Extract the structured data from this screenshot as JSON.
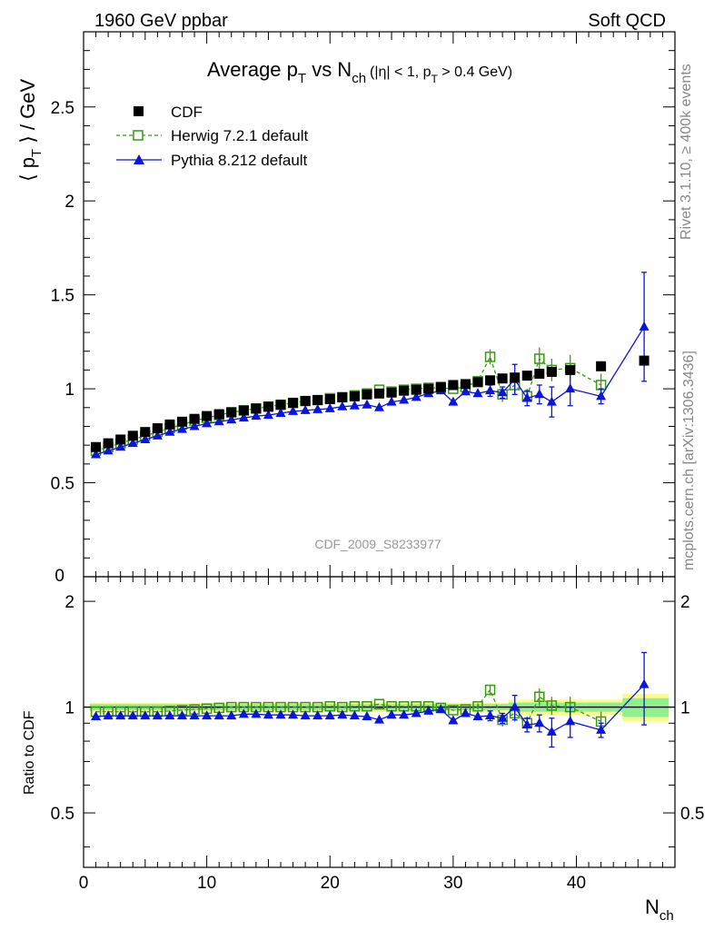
{
  "header": {
    "left": "1960 GeV ppbar",
    "right": "Soft QCD"
  },
  "side": {
    "rivet": "Rivet 3.1.10, ≥ 400k events",
    "mcplots": "mcplots.cern.ch [arXiv:1306.3436]"
  },
  "watermark": "CDF_2009_S8233977",
  "title": {
    "main": "Average p",
    "sub_t": "T",
    "vs": " vs N",
    "sub_ch": "ch",
    "cut": "(|η| < 1, p",
    "cut_sub": "T",
    "cut_end": " > 0.4 GeV)"
  },
  "colors": {
    "cdf": "#000000",
    "herwig": "#3a9a10",
    "pythia": "#0a14e0",
    "band_inner": "#8ef08e",
    "band_outer": "#fbfb8a"
  },
  "chart_data": [
    {
      "type": "scatter",
      "panel": "main",
      "ylabel": "⟨ p_T ⟩ / GeV",
      "ylabel_parts": {
        "pre": "⟨ p",
        "sub": "T",
        "post": " ⟩ / GeV"
      },
      "xlim": [
        0,
        48
      ],
      "ylim": [
        0,
        2.9
      ],
      "yticks": [
        0.5,
        1,
        1.5,
        2,
        2.5
      ],
      "ytick_labels": [
        "0.5",
        "1",
        "1.5",
        "2",
        "2.5"
      ],
      "bottom_label": "0",
      "legend": [
        "CDF",
        "Herwig 7.2.1 default",
        "Pythia 8.212 default"
      ],
      "series": [
        {
          "name": "CDF",
          "x": [
            1,
            2,
            3,
            4,
            5,
            6,
            7,
            8,
            9,
            10,
            11,
            12,
            13,
            14,
            15,
            16,
            17,
            18,
            19,
            20,
            21,
            22,
            23,
            24,
            25,
            26,
            27,
            28,
            29,
            30,
            31,
            32,
            33,
            34,
            35,
            36,
            37,
            38,
            39.5,
            42,
            45.5
          ],
          "y": [
            0.69,
            0.71,
            0.73,
            0.75,
            0.77,
            0.79,
            0.81,
            0.825,
            0.84,
            0.855,
            0.865,
            0.875,
            0.885,
            0.895,
            0.905,
            0.915,
            0.925,
            0.935,
            0.94,
            0.945,
            0.955,
            0.96,
            0.97,
            0.975,
            0.98,
            0.99,
            0.995,
            1.0,
            1.01,
            1.02,
            1.025,
            1.035,
            1.045,
            1.055,
            1.06,
            1.07,
            1.08,
            1.09,
            1.1,
            1.12,
            1.15
          ]
        },
        {
          "name": "Herwig 7.2.1 default",
          "x": [
            1,
            2,
            3,
            4,
            5,
            6,
            7,
            8,
            9,
            10,
            11,
            12,
            13,
            14,
            15,
            16,
            17,
            18,
            19,
            20,
            21,
            22,
            23,
            24,
            25,
            26,
            27,
            28,
            29,
            30,
            31,
            32,
            33,
            34,
            35,
            36,
            37,
            38,
            39.5,
            42
          ],
          "y": [
            0.67,
            0.69,
            0.71,
            0.73,
            0.75,
            0.77,
            0.79,
            0.81,
            0.83,
            0.845,
            0.86,
            0.875,
            0.885,
            0.895,
            0.905,
            0.915,
            0.925,
            0.935,
            0.94,
            0.95,
            0.955,
            0.965,
            0.975,
            0.995,
            0.985,
            0.995,
            1.0,
            1.005,
            1.005,
            1.0,
            1.01,
            1.04,
            1.17,
            0.97,
            1.02,
            0.96,
            1.16,
            1.1,
            1.11,
            1.02
          ],
          "yerr": [
            0,
            0,
            0,
            0,
            0,
            0,
            0,
            0,
            0,
            0,
            0,
            0,
            0,
            0,
            0,
            0,
            0,
            0,
            0,
            0,
            0,
            0,
            0,
            0,
            0,
            0,
            0,
            0,
            0,
            0,
            0,
            0.02,
            0.04,
            0.04,
            0.05,
            0.04,
            0.06,
            0.06,
            0.07,
            0.06
          ]
        },
        {
          "name": "Pythia 8.212 default",
          "x": [
            1,
            2,
            3,
            4,
            5,
            6,
            7,
            8,
            9,
            10,
            11,
            12,
            13,
            14,
            15,
            16,
            17,
            18,
            19,
            20,
            21,
            22,
            23,
            24,
            25,
            26,
            27,
            28,
            29,
            30,
            31,
            32,
            33,
            34,
            35,
            36,
            37,
            38,
            39.5,
            42,
            45.5
          ],
          "y": [
            0.65,
            0.67,
            0.69,
            0.71,
            0.73,
            0.75,
            0.77,
            0.785,
            0.8,
            0.815,
            0.825,
            0.835,
            0.845,
            0.855,
            0.86,
            0.87,
            0.88,
            0.885,
            0.89,
            0.895,
            0.905,
            0.91,
            0.915,
            0.9,
            0.93,
            0.94,
            0.955,
            0.975,
            0.99,
            0.93,
            0.985,
            0.975,
            0.99,
            0.98,
            1.05,
            0.95,
            0.97,
            0.93,
            1.0,
            0.96,
            1.33
          ],
          "yerr": [
            0,
            0,
            0,
            0,
            0,
            0,
            0,
            0,
            0,
            0,
            0,
            0,
            0,
            0,
            0,
            0,
            0,
            0,
            0,
            0,
            0,
            0,
            0,
            0,
            0,
            0,
            0,
            0,
            0,
            0,
            0,
            0,
            0.03,
            0.03,
            0.08,
            0.04,
            0.05,
            0.08,
            0.09,
            0.04,
            0.29
          ]
        }
      ]
    },
    {
      "type": "scatter",
      "panel": "ratio",
      "ylabel": "Ratio to CDF",
      "xlabel": "N_ch",
      "xlabel_parts": {
        "pre": "N",
        "sub": "ch"
      },
      "xlim": [
        0,
        48
      ],
      "ylim": [
        0.35,
        2.35
      ],
      "yticks": [
        0.5,
        1,
        2
      ],
      "ytick_labels": [
        "0.5",
        "1",
        "2"
      ],
      "xticks": [
        0,
        10,
        20,
        30,
        40
      ],
      "xtick_labels": [
        "0",
        "10",
        "20",
        "30",
        "40"
      ],
      "reference": 1,
      "band_inner": [
        0.02,
        0.02,
        0.02,
        0.02,
        0.02,
        0.02,
        0.02,
        0.02,
        0.02,
        0.02,
        0.02,
        0.02,
        0.02,
        0.02,
        0.02,
        0.02,
        0.02,
        0.02,
        0.02,
        0.02,
        0.02,
        0.02,
        0.02,
        0.02,
        0.02,
        0.02,
        0.02,
        0.02,
        0.02,
        0.02,
        0.02,
        0.02,
        0.02,
        0.02,
        0.03,
        0.03,
        0.03,
        0.03,
        0.03,
        0.03,
        0.06
      ],
      "band_outer": [
        0.03,
        0.03,
        0.03,
        0.03,
        0.03,
        0.03,
        0.03,
        0.03,
        0.03,
        0.03,
        0.03,
        0.03,
        0.03,
        0.03,
        0.03,
        0.03,
        0.03,
        0.03,
        0.03,
        0.03,
        0.03,
        0.03,
        0.03,
        0.03,
        0.03,
        0.03,
        0.03,
        0.03,
        0.03,
        0.03,
        0.03,
        0.03,
        0.03,
        0.03,
        0.05,
        0.05,
        0.05,
        0.05,
        0.05,
        0.05,
        0.09
      ],
      "series": [
        {
          "name": "Herwig 7.2.1 default",
          "y": [
            0.97,
            0.97,
            0.97,
            0.97,
            0.97,
            0.97,
            0.975,
            0.98,
            0.985,
            0.99,
            0.995,
            1.0,
            1.0,
            1.0,
            1.0,
            1.0,
            1.0,
            1.0,
            1.0,
            1.005,
            1.0,
            1.005,
            1.005,
            1.02,
            1.005,
            1.005,
            1.005,
            1.005,
            0.995,
            0.98,
            0.985,
            1.005,
            1.12,
            0.92,
            0.96,
            0.9,
            1.07,
            1.01,
            1.0,
            0.91
          ],
          "yerr": [
            0,
            0,
            0,
            0,
            0,
            0,
            0,
            0,
            0,
            0,
            0,
            0,
            0,
            0,
            0,
            0,
            0,
            0,
            0,
            0,
            0,
            0,
            0,
            0,
            0,
            0,
            0,
            0,
            0,
            0,
            0,
            0.02,
            0.04,
            0.04,
            0.05,
            0.04,
            0.06,
            0.06,
            0.07,
            0.06
          ]
        },
        {
          "name": "Pythia 8.212 default",
          "y": [
            0.94,
            0.945,
            0.945,
            0.945,
            0.945,
            0.945,
            0.945,
            0.945,
            0.945,
            0.945,
            0.945,
            0.945,
            0.955,
            0.955,
            0.95,
            0.95,
            0.95,
            0.945,
            0.945,
            0.945,
            0.95,
            0.945,
            0.94,
            0.92,
            0.95,
            0.95,
            0.96,
            0.975,
            0.985,
            0.915,
            0.96,
            0.94,
            0.945,
            0.93,
            1.0,
            0.89,
            0.9,
            0.85,
            0.91,
            0.86,
            1.16
          ],
          "yerr": [
            0,
            0,
            0,
            0,
            0,
            0,
            0,
            0,
            0,
            0,
            0,
            0,
            0,
            0,
            0,
            0,
            0,
            0,
            0,
            0,
            0,
            0,
            0,
            0,
            0,
            0,
            0,
            0,
            0,
            0,
            0,
            0,
            0.03,
            0.03,
            0.08,
            0.04,
            0.05,
            0.08,
            0.09,
            0.04,
            0.27
          ]
        }
      ]
    }
  ]
}
